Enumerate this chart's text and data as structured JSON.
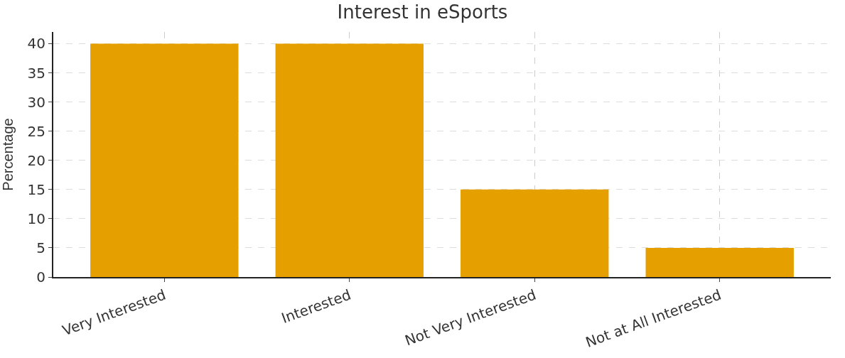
{
  "chart_data": {
    "type": "bar",
    "title": "Interest in eSports",
    "ylabel": "Percentage",
    "categories": [
      "Very Interested",
      "Interested",
      "Not Very Interested",
      "Not at All Interested"
    ],
    "values": [
      40,
      40,
      15,
      5
    ],
    "color": "#e5a000",
    "ylim": [
      0,
      42
    ],
    "yticks": [
      0,
      5,
      10,
      15,
      20,
      25,
      30,
      35,
      40
    ],
    "grid": true
  }
}
